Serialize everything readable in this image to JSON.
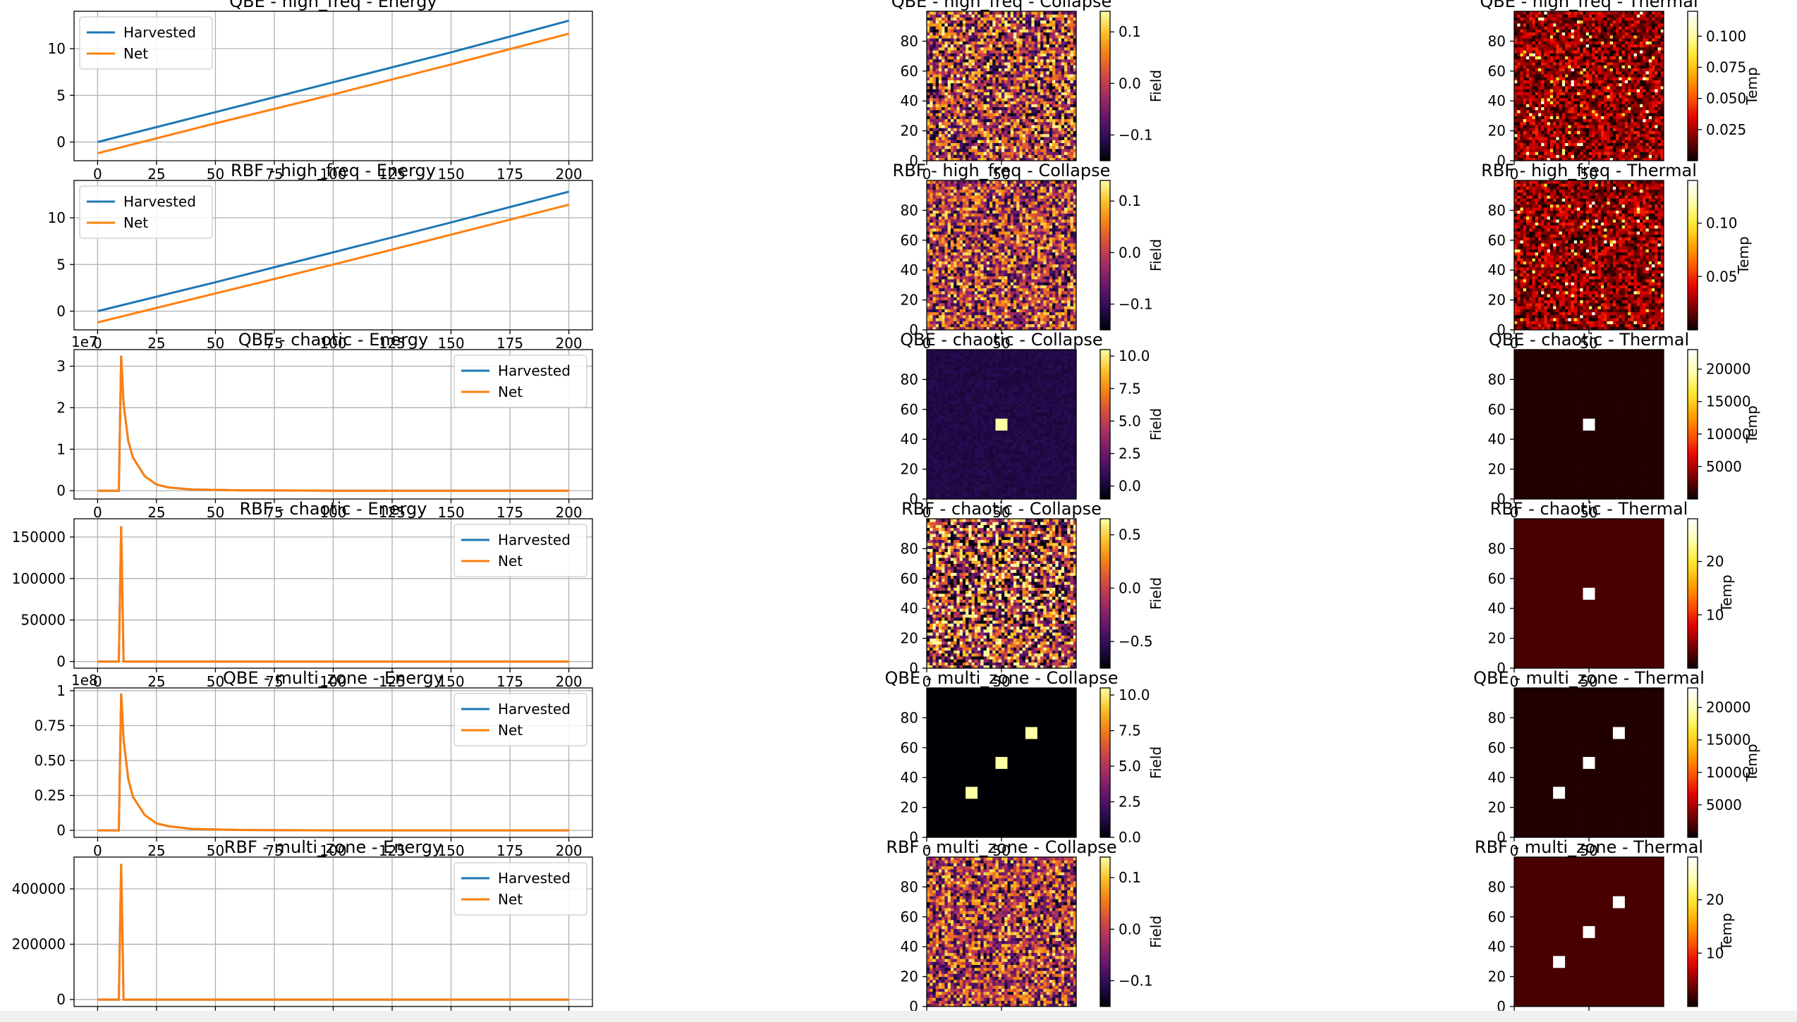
{
  "figure": {
    "window_bottom_bar": true
  },
  "colors": {
    "harvested": "#1f77b4",
    "net": "#ff7f0e",
    "grid": "#b0b0b0",
    "collapse_colormap": "inferno",
    "thermal_colormap": "hot"
  },
  "chart_data": [
    {
      "type": "line",
      "title": "QBE - high_freq - Energy",
      "multiplier": "",
      "legend": "top-left",
      "xlim": [
        -10,
        210
      ],
      "ylim": [
        -2,
        14
      ],
      "grid": true,
      "xticks": [
        0,
        25,
        50,
        75,
        100,
        125,
        150,
        175,
        200
      ],
      "yticks": [
        0,
        5,
        10
      ],
      "series": [
        {
          "name": "Harvested",
          "x": [
            0,
            50,
            100,
            150,
            200
          ],
          "y": [
            0,
            3.2,
            6.4,
            9.6,
            13.0
          ]
        },
        {
          "name": "Net",
          "x": [
            0,
            50,
            100,
            150,
            200
          ],
          "y": [
            -1.2,
            2.0,
            5.1,
            8.3,
            11.6
          ]
        }
      ]
    },
    {
      "type": "heatmap",
      "title": "QBE - high_freq - Collapse",
      "colormap": "inferno",
      "xlim": [
        0,
        100
      ],
      "ylim": [
        0,
        100
      ],
      "xticks": [
        0,
        50
      ],
      "yticks": [
        0,
        20,
        40,
        60,
        80
      ],
      "pattern": "noise",
      "noise_level": 0.5,
      "colorbar": {
        "label": "Field",
        "range": [
          -0.15,
          0.14
        ],
        "ticks": [
          "0.1",
          "0.0",
          "−0.1"
        ],
        "tick_values": [
          0.1,
          0,
          -0.1
        ]
      }
    },
    {
      "type": "heatmap",
      "title": "QBE - high_freq - Thermal",
      "colormap": "hot",
      "xlim": [
        0,
        100
      ],
      "ylim": [
        0,
        100
      ],
      "xticks": [
        0,
        50
      ],
      "yticks": [
        0,
        20,
        40,
        60,
        80
      ],
      "pattern": "sparse",
      "colorbar": {
        "label": "Temp",
        "range": [
          0.0,
          0.12
        ],
        "ticks": [
          "0.100",
          "0.075",
          "0.050",
          "0.025"
        ],
        "tick_values": [
          0.1,
          0.075,
          0.05,
          0.025
        ]
      }
    },
    {
      "type": "line",
      "title": "RBF - high_freq - Energy",
      "multiplier": "",
      "legend": "top-left",
      "xlim": [
        -10,
        210
      ],
      "ylim": [
        -2,
        14
      ],
      "grid": true,
      "xticks": [
        0,
        25,
        50,
        75,
        100,
        125,
        150,
        175,
        200
      ],
      "yticks": [
        0,
        5,
        10
      ],
      "series": [
        {
          "name": "Harvested",
          "x": [
            0,
            50,
            100,
            150,
            200
          ],
          "y": [
            0,
            3.1,
            6.3,
            9.5,
            12.8
          ]
        },
        {
          "name": "Net",
          "x": [
            0,
            50,
            100,
            150,
            200
          ],
          "y": [
            -1.2,
            1.9,
            5.0,
            8.2,
            11.4
          ]
        }
      ]
    },
    {
      "type": "heatmap",
      "title": "RBF - high_freq - Collapse",
      "colormap": "inferno",
      "xlim": [
        0,
        100
      ],
      "ylim": [
        0,
        100
      ],
      "xticks": [
        0,
        50
      ],
      "yticks": [
        0,
        20,
        40,
        60,
        80
      ],
      "pattern": "noise",
      "noise_level": 0.45,
      "colorbar": {
        "label": "Field",
        "range": [
          -0.15,
          0.14
        ],
        "ticks": [
          "0.1",
          "0.0",
          "−0.1"
        ],
        "tick_values": [
          0.1,
          0,
          -0.1
        ]
      }
    },
    {
      "type": "heatmap",
      "title": "RBF - high_freq - Thermal",
      "colormap": "hot",
      "xlim": [
        0,
        100
      ],
      "ylim": [
        0,
        100
      ],
      "xticks": [
        0,
        50
      ],
      "yticks": [
        0,
        20,
        40,
        60,
        80
      ],
      "pattern": "sparse",
      "colorbar": {
        "label": "Temp",
        "range": [
          0.0,
          0.14
        ],
        "ticks": [
          "0.10",
          "0.05"
        ],
        "tick_values": [
          0.1,
          0.05
        ]
      }
    },
    {
      "type": "line",
      "title": "QBE - chaotic - Energy",
      "multiplier": "1e7",
      "legend": "top-right",
      "xlim": [
        -10,
        210
      ],
      "ylim": [
        -0.2,
        3.4
      ],
      "grid": true,
      "xticks": [
        0,
        25,
        50,
        75,
        100,
        125,
        150,
        175,
        200
      ],
      "yticks": [
        0,
        1,
        2,
        3
      ],
      "series": [
        {
          "name": "Harvested",
          "x": [
            0,
            9,
            10,
            11,
            13,
            15,
            20,
            25,
            30,
            40,
            60,
            100,
            200
          ],
          "y": [
            0,
            0,
            3.25,
            2.1,
            1.2,
            0.8,
            0.35,
            0.15,
            0.08,
            0.03,
            0.01,
            0,
            0
          ]
        },
        {
          "name": "Net",
          "x": [
            0,
            9,
            10,
            11,
            13,
            15,
            20,
            25,
            30,
            40,
            60,
            100,
            200
          ],
          "y": [
            0,
            0,
            3.25,
            2.1,
            1.2,
            0.8,
            0.35,
            0.15,
            0.08,
            0.03,
            0.01,
            0,
            0
          ]
        }
      ]
    },
    {
      "type": "heatmap",
      "title": "QBE - chaotic - Collapse",
      "colormap": "inferno",
      "xlim": [
        0,
        100
      ],
      "ylim": [
        0,
        100
      ],
      "xticks": [
        0,
        50
      ],
      "yticks": [
        0,
        20,
        40,
        60,
        80
      ],
      "pattern": "blobs",
      "blobs": [
        {
          "x": 50,
          "y": 50,
          "r": 5
        }
      ],
      "background_level": 0.12,
      "noise_level": 0.03,
      "colorbar": {
        "label": "Field",
        "range": [
          -1.0,
          10.5
        ],
        "ticks": [
          "10.0",
          "7.5",
          "5.0",
          "2.5",
          "0.0"
        ],
        "tick_values": [
          10,
          7.5,
          5,
          2.5,
          0
        ]
      }
    },
    {
      "type": "heatmap",
      "title": "QBE - chaotic - Thermal",
      "colormap": "hot",
      "xlim": [
        0,
        100
      ],
      "ylim": [
        0,
        100
      ],
      "xticks": [
        0,
        50
      ],
      "yticks": [
        0,
        20,
        40,
        60,
        80
      ],
      "pattern": "blobs",
      "blobs": [
        {
          "x": 50,
          "y": 50,
          "r": 5
        }
      ],
      "background_level": 0.03,
      "colorbar": {
        "label": "Temp",
        "range": [
          0,
          23000
        ],
        "ticks": [
          "20000",
          "15000",
          "10000",
          "5000"
        ],
        "tick_values": [
          20000,
          15000,
          10000,
          5000
        ]
      }
    },
    {
      "type": "line",
      "title": "RBF - chaotic - Energy",
      "multiplier": "",
      "legend": "top-right",
      "xlim": [
        -10,
        210
      ],
      "ylim": [
        -8000,
        172000
      ],
      "grid": true,
      "xticks": [
        0,
        25,
        50,
        75,
        100,
        125,
        150,
        175,
        200
      ],
      "yticks": [
        0,
        50000,
        100000,
        150000
      ],
      "series": [
        {
          "name": "Harvested",
          "x": [
            0,
            9,
            10,
            11,
            200
          ],
          "y": [
            0,
            0,
            163000,
            0,
            0
          ]
        },
        {
          "name": "Net",
          "x": [
            0,
            9,
            10,
            11,
            200
          ],
          "y": [
            0,
            0,
            163000,
            0,
            0
          ]
        }
      ]
    },
    {
      "type": "heatmap",
      "title": "RBF - chaotic - Collapse",
      "colormap": "inferno",
      "xlim": [
        0,
        100
      ],
      "ylim": [
        0,
        100
      ],
      "xticks": [
        0,
        50
      ],
      "yticks": [
        0,
        20,
        40,
        60,
        80
      ],
      "pattern": "noise",
      "noise_level": 0.6,
      "colorbar": {
        "label": "Field",
        "range": [
          -0.75,
          0.65
        ],
        "ticks": [
          "0.5",
          "0.0",
          "−0.5"
        ],
        "tick_values": [
          0.5,
          0,
          -0.5
        ]
      }
    },
    {
      "type": "heatmap",
      "title": "RBF - chaotic - Thermal",
      "colormap": "hot",
      "xlim": [
        0,
        100
      ],
      "ylim": [
        0,
        100
      ],
      "xticks": [
        0,
        50
      ],
      "yticks": [
        0,
        20,
        40,
        60,
        80
      ],
      "pattern": "blobs",
      "blobs": [
        {
          "x": 50,
          "y": 50,
          "r": 5
        }
      ],
      "background_level": 0.08,
      "colorbar": {
        "label": "Temp",
        "range": [
          0,
          28
        ],
        "ticks": [
          "20",
          "10"
        ],
        "tick_values": [
          20,
          10
        ]
      }
    },
    {
      "type": "line",
      "title": "QBE - multi_zone - Energy",
      "multiplier": "1e8",
      "legend": "top-right",
      "xlim": [
        -10,
        210
      ],
      "ylim": [
        -0.05,
        1.02
      ],
      "grid": true,
      "xticks": [
        0,
        25,
        50,
        75,
        100,
        125,
        150,
        175,
        200
      ],
      "yticks": [
        0.0,
        0.25,
        0.5,
        0.75,
        1.0
      ],
      "series": [
        {
          "name": "Harvested",
          "x": [
            0,
            9,
            10,
            11,
            13,
            15,
            20,
            25,
            30,
            40,
            60,
            100,
            200
          ],
          "y": [
            0,
            0,
            0.98,
            0.65,
            0.37,
            0.24,
            0.11,
            0.05,
            0.03,
            0.01,
            0.003,
            0,
            0
          ]
        },
        {
          "name": "Net",
          "x": [
            0,
            9,
            10,
            11,
            13,
            15,
            20,
            25,
            30,
            40,
            60,
            100,
            200
          ],
          "y": [
            0,
            0,
            0.98,
            0.65,
            0.37,
            0.24,
            0.11,
            0.05,
            0.03,
            0.01,
            0.003,
            0,
            0
          ]
        }
      ]
    },
    {
      "type": "heatmap",
      "title": "QBE - multi_zone - Collapse",
      "colormap": "inferno",
      "xlim": [
        0,
        100
      ],
      "ylim": [
        0,
        100
      ],
      "xticks": [
        0,
        50
      ],
      "yticks": [
        0,
        20,
        40,
        60,
        80
      ],
      "pattern": "blobs",
      "blobs": [
        {
          "x": 30,
          "y": 30,
          "r": 5
        },
        {
          "x": 50,
          "y": 50,
          "r": 5
        },
        {
          "x": 70,
          "y": 70,
          "r": 5
        }
      ],
      "background_level": 0.0,
      "noise_level": 0.0,
      "colorbar": {
        "label": "Field",
        "range": [
          0,
          10.5
        ],
        "ticks": [
          "10.0",
          "7.5",
          "5.0",
          "2.5",
          "0.0"
        ],
        "tick_values": [
          10,
          7.5,
          5,
          2.5,
          0
        ]
      }
    },
    {
      "type": "heatmap",
      "title": "QBE - multi_zone - Thermal",
      "colormap": "hot",
      "xlim": [
        0,
        100
      ],
      "ylim": [
        0,
        100
      ],
      "xticks": [
        0,
        50
      ],
      "yticks": [
        0,
        20,
        40,
        60,
        80
      ],
      "pattern": "blobs",
      "blobs": [
        {
          "x": 30,
          "y": 30,
          "r": 5
        },
        {
          "x": 50,
          "y": 50,
          "r": 5
        },
        {
          "x": 70,
          "y": 70,
          "r": 5
        }
      ],
      "background_level": 0.03,
      "colorbar": {
        "label": "Temp",
        "range": [
          0,
          23000
        ],
        "ticks": [
          "20000",
          "15000",
          "10000",
          "5000"
        ],
        "tick_values": [
          20000,
          15000,
          10000,
          5000
        ]
      }
    },
    {
      "type": "line",
      "title": "RBF - multi_zone - Energy",
      "multiplier": "",
      "legend": "top-right",
      "xlim": [
        -10,
        210
      ],
      "ylim": [
        -25000,
        515000
      ],
      "grid": true,
      "xticks": [
        0,
        25,
        50,
        75,
        100,
        125,
        150,
        175,
        200
      ],
      "yticks": [
        0,
        200000,
        400000
      ],
      "series": [
        {
          "name": "Harvested",
          "x": [
            0,
            9,
            10,
            11,
            200
          ],
          "y": [
            0,
            0,
            490000,
            0,
            0
          ]
        },
        {
          "name": "Net",
          "x": [
            0,
            9,
            10,
            11,
            200
          ],
          "y": [
            0,
            0,
            490000,
            0,
            0
          ]
        }
      ]
    },
    {
      "type": "heatmap",
      "title": "RBF - multi_zone - Collapse",
      "colormap": "inferno",
      "xlim": [
        0,
        100
      ],
      "ylim": [
        0,
        100
      ],
      "xticks": [
        0,
        50
      ],
      "yticks": [
        0,
        20,
        40,
        60,
        80
      ],
      "pattern": "noise",
      "noise_level": 0.45,
      "colorbar": {
        "label": "Field",
        "range": [
          -0.15,
          0.14
        ],
        "ticks": [
          "0.1",
          "0.0",
          "−0.1"
        ],
        "tick_values": [
          0.1,
          0,
          -0.1
        ]
      }
    },
    {
      "type": "heatmap",
      "title": "RBF - multi_zone - Thermal",
      "colormap": "hot",
      "xlim": [
        0,
        100
      ],
      "ylim": [
        0,
        100
      ],
      "xticks": [
        0,
        50
      ],
      "yticks": [
        0,
        20,
        40,
        60,
        80
      ],
      "pattern": "blobs",
      "blobs": [
        {
          "x": 30,
          "y": 30,
          "r": 5
        },
        {
          "x": 50,
          "y": 50,
          "r": 5
        },
        {
          "x": 70,
          "y": 70,
          "r": 5
        }
      ],
      "background_level": 0.08,
      "colorbar": {
        "label": "Temp",
        "range": [
          0,
          28
        ],
        "ticks": [
          "20",
          "10"
        ],
        "tick_values": [
          20,
          10
        ]
      }
    }
  ]
}
